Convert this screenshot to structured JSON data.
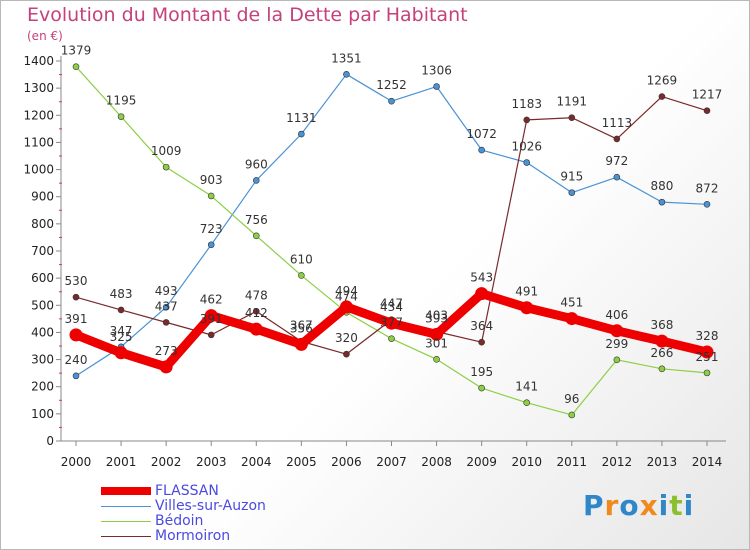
{
  "title": "Evolution du Montant de la Dette par Habitant",
  "unit": "(en €)",
  "logo": "Proxiti",
  "colors": {
    "title": "#c4417d",
    "FLASSAN": "#ee0000",
    "Villes-sur-Auzon": "#4a92d4",
    "Bédoin": "#8ccf44",
    "Mormoiron": "#7a2a2a",
    "legend_text": "#4a4adf"
  },
  "chart_data": {
    "type": "line",
    "title": "Evolution du Montant de la Dette par Habitant",
    "ylabel": "(en €)",
    "xlabel": "",
    "x": [
      2000,
      2001,
      2002,
      2003,
      2004,
      2005,
      2006,
      2007,
      2008,
      2009,
      2010,
      2011,
      2012,
      2013,
      2014
    ],
    "ylim": [
      0,
      1400
    ],
    "yticks": [
      0,
      100,
      200,
      300,
      400,
      500,
      600,
      700,
      800,
      900,
      1000,
      1100,
      1200,
      1300,
      1400
    ],
    "grid": false,
    "legend_position": "bottom-left",
    "series": [
      {
        "name": "FLASSAN",
        "values": [
          391,
          325,
          273,
          462,
          412,
          356,
          494,
          434,
          393,
          543,
          491,
          451,
          406,
          368,
          328
        ]
      },
      {
        "name": "Villes-sur-Auzon",
        "values": [
          240,
          347,
          493,
          723,
          960,
          1131,
          1351,
          1252,
          1306,
          1072,
          1026,
          915,
          972,
          880,
          872
        ]
      },
      {
        "name": "Bédoin",
        "values": [
          1379,
          1195,
          1009,
          903,
          756,
          610,
          474,
          377,
          301,
          195,
          141,
          96,
          299,
          266,
          251
        ]
      },
      {
        "name": "Mormoiron",
        "values": [
          530,
          483,
          437,
          391,
          478,
          367,
          320,
          447,
          403,
          364,
          1183,
          1191,
          1113,
          1269,
          1217
        ]
      }
    ]
  }
}
